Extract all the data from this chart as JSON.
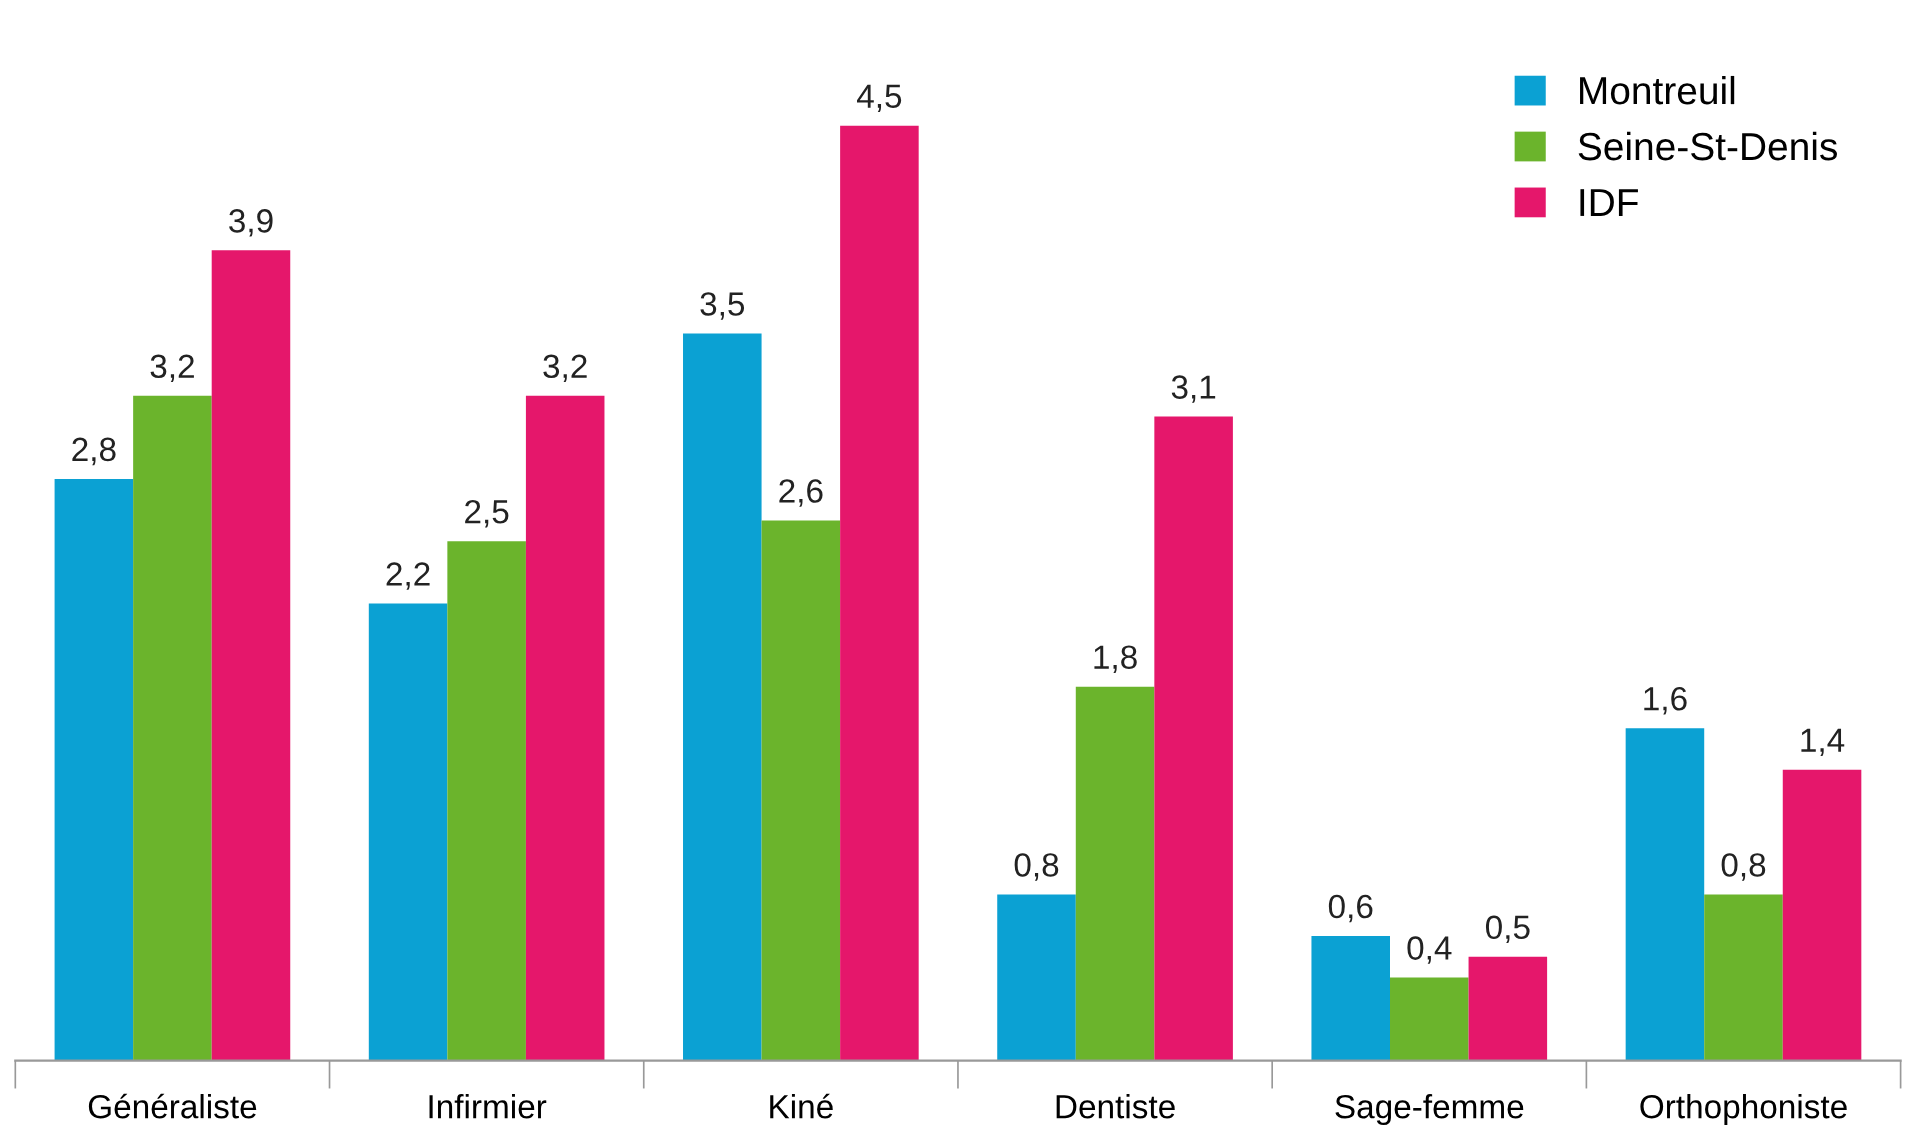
{
  "chart_data": {
    "type": "bar",
    "categories": [
      "Généraliste",
      "Infirmier",
      "Kiné",
      "Dentiste",
      "Sage-femme",
      "Orthophoniste"
    ],
    "series": [
      {
        "name": "Montreuil",
        "color": "#0ba1d3",
        "values": [
          2.8,
          2.2,
          3.5,
          0.8,
          0.6,
          1.6
        ],
        "value_labels": [
          "2,8",
          "2,2",
          "3,5",
          "0,8",
          "0,6",
          "1,6"
        ]
      },
      {
        "name": "Seine-St-Denis",
        "color": "#6bb42c",
        "values": [
          3.2,
          2.5,
          2.6,
          1.8,
          0.4,
          0.8
        ],
        "value_labels": [
          "3,2",
          "2,5",
          "2,6",
          "1,8",
          "0,4",
          "0,8"
        ]
      },
      {
        "name": "IDF",
        "color": "#e5176b",
        "values": [
          3.9,
          3.2,
          4.5,
          3.1,
          0.5,
          1.4
        ],
        "value_labels": [
          "3,9",
          "3,2",
          "4,5",
          "3,1",
          "0,5",
          "1,4"
        ]
      }
    ],
    "tick_labels": "x",
    "grid": false,
    "legend": "top right"
  }
}
